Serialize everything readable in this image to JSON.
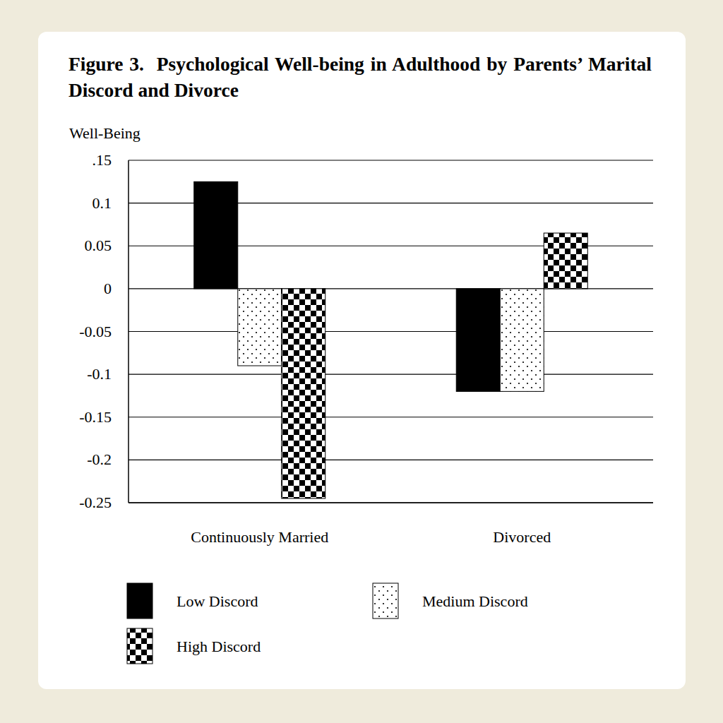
{
  "chart_data": {
    "type": "bar",
    "title": "Figure 3.  Psychological Well-being in Adulthood by Parents’ Marital Discord and Divorce",
    "y_label": "Well-Being",
    "categories": [
      "Continuously Married",
      "Divorced"
    ],
    "series": [
      {
        "name": "Low Discord",
        "color": "#000000",
        "values": [
          0.125,
          -0.12
        ]
      },
      {
        "name": "Medium Discord",
        "color": "#000000",
        "values": [
          -0.09,
          -0.12
        ]
      },
      {
        "name": "High Discord",
        "color": "#000000",
        "values": [
          -0.245,
          0.065
        ]
      }
    ],
    "ylim": [
      -0.25,
      0.15
    ],
    "yticks": [
      {
        "value": 0.15,
        "label": ".15"
      },
      0.1,
      0.05,
      0,
      -0.05,
      -0.1,
      -0.15,
      -0.2,
      -0.25
    ],
    "grid": true,
    "legend": "bottom"
  }
}
